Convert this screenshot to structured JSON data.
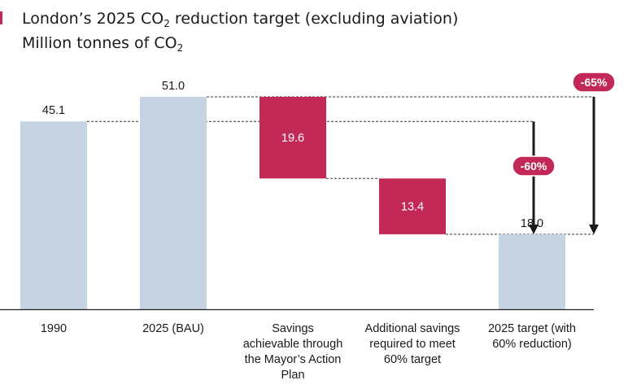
{
  "title": {
    "line1_pre": "London’s 2025 CO",
    "line1_sub": "2",
    "line1_post": " reduction target (excluding aviation)",
    "line2_pre": "Million tonnes of CO",
    "line2_sub": "2"
  },
  "colors": {
    "total_bar": "#c5d3e3",
    "savings_bar": "#c32956",
    "reduction_badge": "#c32956",
    "text": "#1a1a1a",
    "label_on_bar": "#ffffff",
    "marker": "#c32956"
  },
  "chart_data": {
    "type": "bar",
    "subtype": "waterfall",
    "categories": [
      "1990",
      "2025 (BAU)",
      "Savings achievable through the Mayor’s Action Plan",
      "Additional savings required to meet 60% target",
      "2025 target (with 60% reduction)"
    ],
    "category_lines": [
      [
        "1990"
      ],
      [
        "2025 (BAU)"
      ],
      [
        "Savings",
        "achievable through",
        "the Mayor’s Action",
        "Plan"
      ],
      [
        "Additional savings",
        "required to meet",
        "60% target"
      ],
      [
        "2025 target (with",
        "60% reduction)"
      ]
    ],
    "bars": [
      {
        "kind": "total",
        "start": 0,
        "end": 45.1,
        "label": "45.1"
      },
      {
        "kind": "total",
        "start": 0,
        "end": 51.0,
        "label": "51.0"
      },
      {
        "kind": "saving",
        "start": 31.4,
        "end": 51.0,
        "label": "19.6"
      },
      {
        "kind": "saving",
        "start": 18.0,
        "end": 31.4,
        "label": "13.4"
      },
      {
        "kind": "total",
        "start": 0,
        "end": 18.0,
        "label": "18.0"
      }
    ],
    "reductions": [
      {
        "label": "-60%",
        "from": 45.1,
        "to": 18.0
      },
      {
        "label": "-65%",
        "from": 51.0,
        "to": 18.0
      }
    ],
    "ylim": [
      0,
      51.0
    ],
    "grid": false,
    "legend": "none",
    "xlabel": "",
    "ylabel": ""
  }
}
